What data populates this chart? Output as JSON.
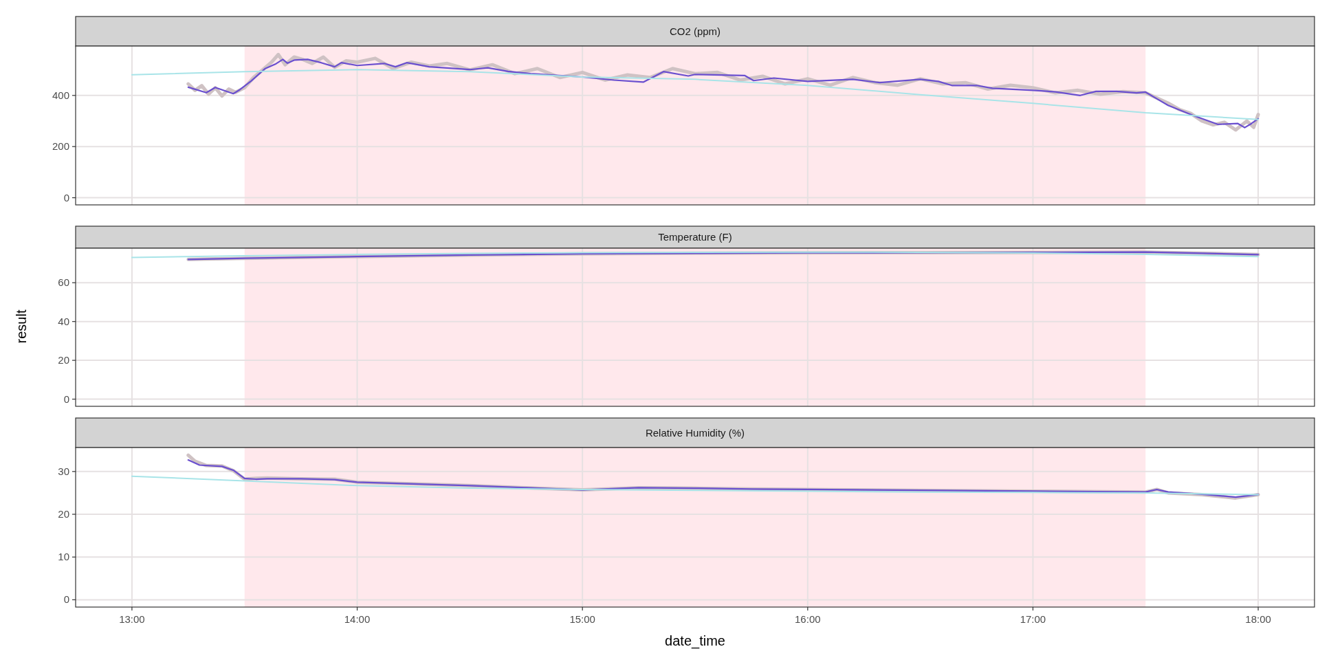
{
  "chart_data": [
    {
      "type": "line",
      "title": "CO2 (ppm)",
      "xlim": [
        12.75,
        18.25
      ],
      "xticks": [
        13,
        14,
        15,
        16,
        17,
        18
      ],
      "ylim": [
        -28,
        593
      ],
      "yticks": [
        0,
        200,
        400
      ],
      "grid": true,
      "tick_labels": "y",
      "bands": [
        {
          "axis": "x",
          "from": 13.5,
          "to": 17.5,
          "color": "#ffe8ec"
        }
      ],
      "series": [
        {
          "color": "#cfc2c4",
          "x": [
            13.25,
            13.28,
            13.31,
            13.34,
            13.37,
            13.4,
            13.43,
            13.46,
            13.5,
            13.54,
            13.58,
            13.62,
            13.65,
            13.68,
            13.72,
            13.76,
            13.8,
            13.85,
            13.9,
            13.95,
            14.0,
            14.08,
            14.16,
            14.24,
            14.32,
            14.4,
            14.5,
            14.6,
            14.7,
            14.8,
            14.9,
            15.0,
            15.1,
            15.2,
            15.3,
            15.4,
            15.5,
            15.6,
            15.7,
            15.8,
            15.9,
            16.0,
            16.1,
            16.2,
            16.3,
            16.4,
            16.5,
            16.6,
            16.7,
            16.8,
            16.9,
            17.0,
            17.1,
            17.2,
            17.3,
            17.4,
            17.5,
            17.55,
            17.6,
            17.65,
            17.7,
            17.75,
            17.8,
            17.85,
            17.9,
            17.95,
            17.98,
            18.0
          ],
          "values": [
            445,
            420,
            438,
            405,
            430,
            398,
            425,
            412,
            430,
            470,
            500,
            530,
            560,
            520,
            550,
            540,
            525,
            550,
            510,
            535,
            530,
            545,
            505,
            530,
            515,
            525,
            500,
            520,
            485,
            505,
            470,
            490,
            460,
            480,
            470,
            505,
            485,
            490,
            460,
            475,
            445,
            465,
            440,
            470,
            450,
            440,
            465,
            445,
            450,
            425,
            440,
            430,
            410,
            420,
            405,
            415,
            410,
            390,
            370,
            345,
            330,
            300,
            285,
            295,
            265,
            300,
            275,
            325
          ]
        },
        {
          "color": "#6a4fcf",
          "x": [
            13.25,
            13.33,
            13.37,
            13.45,
            13.48,
            13.53,
            13.59,
            13.64,
            13.67,
            13.69,
            13.72,
            13.78,
            13.84,
            13.9,
            13.93,
            14.0,
            14.12,
            14.17,
            14.22,
            14.32,
            14.5,
            14.58,
            14.67,
            14.77,
            15.0,
            15.14,
            15.27,
            15.36,
            15.47,
            15.5,
            15.72,
            15.76,
            15.85,
            16.0,
            16.2,
            16.32,
            16.5,
            16.58,
            16.64,
            16.75,
            16.82,
            17.0,
            17.1,
            17.21,
            17.28,
            17.37,
            17.46,
            17.5,
            17.55,
            17.6,
            17.71,
            17.82,
            17.91,
            17.94,
            17.97,
            18.0
          ],
          "values": [
            432,
            411,
            431,
            407,
            423,
            457,
            504,
            524,
            541,
            526,
            538,
            541,
            528,
            512,
            528,
            517,
            525,
            512,
            528,
            512,
            501,
            508,
            494,
            485,
            472,
            460,
            452,
            493,
            476,
            482,
            478,
            458,
            468,
            455,
            463,
            450,
            463,
            455,
            439,
            439,
            428,
            420,
            414,
            400,
            416,
            416,
            410,
            413,
            387,
            361,
            322,
            287,
            290,
            274,
            290,
            309
          ]
        },
        {
          "color": "#a8e4e8",
          "x": [
            13.0,
            13.5,
            14.0,
            14.5,
            15.0,
            15.5,
            16.0,
            16.5,
            17.0,
            17.5,
            18.0
          ],
          "values": [
            481,
            493,
            501,
            493,
            472,
            463,
            439,
            403,
            369,
            332,
            306
          ]
        }
      ]
    },
    {
      "type": "line",
      "title": "Temperature (F)",
      "ylabel": "result",
      "xlim": [
        12.75,
        18.25
      ],
      "xticks": [
        13,
        14,
        15,
        16,
        17,
        18
      ],
      "ylim": [
        -3.7,
        77.8
      ],
      "yticks": [
        0,
        20,
        40,
        60
      ],
      "grid": true,
      "tick_labels": "y",
      "bands": [
        {
          "axis": "x",
          "from": 13.5,
          "to": 17.5,
          "color": "#ffe8ec"
        }
      ],
      "series": [
        {
          "color": "#cfc2c4",
          "x": [
            13.25,
            13.5,
            14.0,
            14.5,
            15.0,
            15.5,
            16.0,
            16.5,
            17.0,
            17.5,
            17.75,
            18.0
          ],
          "values": [
            72,
            72.6,
            73.5,
            74.3,
            74.9,
            75.2,
            75.4,
            75.5,
            75.6,
            75.8,
            75.2,
            74.5
          ]
        },
        {
          "color": "#6a4fcf",
          "x": [
            13.25,
            13.5,
            14.0,
            14.5,
            15.0,
            15.5,
            16.0,
            16.5,
            17.0,
            17.5,
            17.75,
            18.0
          ],
          "values": [
            72,
            72.6,
            73.5,
            74.3,
            74.9,
            75.2,
            75.4,
            75.5,
            75.6,
            75.8,
            75.2,
            74.5
          ]
        },
        {
          "color": "#a8e4e8",
          "x": [
            13.0,
            13.5,
            14.0,
            14.5,
            15.0,
            15.5,
            16.0,
            16.5,
            17.0,
            17.5,
            18.0
          ],
          "values": [
            73,
            73.9,
            74.6,
            75.1,
            75.5,
            75.7,
            75.8,
            75.7,
            75.3,
            74.6,
            73.5
          ]
        }
      ]
    },
    {
      "type": "line",
      "title": "Relative Humidity (%)",
      "xlabel": "date_time",
      "xlim": [
        12.75,
        18.25
      ],
      "xticks": [
        {
          "value": 13,
          "label": "13:00"
        },
        {
          "value": 14,
          "label": "14:00"
        },
        {
          "value": 15,
          "label": "15:00"
        },
        {
          "value": 16,
          "label": "16:00"
        },
        {
          "value": 17,
          "label": "17:00"
        },
        {
          "value": 18,
          "label": "18:00"
        }
      ],
      "ylim": [
        -1.7,
        35.6
      ],
      "yticks": [
        0,
        10,
        20,
        30
      ],
      "grid": true,
      "bands": [
        {
          "axis": "x",
          "from": 13.5,
          "to": 17.5,
          "color": "#ffe8ec"
        }
      ],
      "series": [
        {
          "color": "#cfc2c4",
          "x": [
            13.25,
            13.28,
            13.33,
            13.4,
            13.45,
            13.5,
            13.55,
            13.6,
            13.75,
            13.9,
            14.0,
            14.25,
            14.5,
            14.75,
            15.0,
            15.25,
            15.5,
            15.75,
            16.0,
            16.5,
            17.0,
            17.5,
            17.55,
            17.6,
            17.75,
            17.9,
            18.0
          ],
          "values": [
            33.8,
            32.4,
            31.4,
            31.3,
            30.2,
            28.2,
            28.4,
            28.5,
            28.3,
            28.2,
            27.5,
            27.1,
            26.7,
            26.2,
            25.7,
            26.2,
            26.1,
            25.9,
            25.8,
            25.6,
            25.4,
            25.2,
            25.8,
            25.0,
            24.6,
            23.8,
            24.6
          ]
        },
        {
          "color": "#6a4fcf",
          "x": [
            13.25,
            13.3,
            13.4,
            13.45,
            13.5,
            13.55,
            13.6,
            13.75,
            13.9,
            14.0,
            14.25,
            14.5,
            14.75,
            15.0,
            15.25,
            15.5,
            15.75,
            16.0,
            16.5,
            17.0,
            17.5,
            17.55,
            17.6,
            17.75,
            17.9,
            18.0
          ],
          "values": [
            32.7,
            31.5,
            31.2,
            30.3,
            28.4,
            28.2,
            28.3,
            28.3,
            28.1,
            27.5,
            27.1,
            26.7,
            26.2,
            25.7,
            26.2,
            26.1,
            25.9,
            25.8,
            25.6,
            25.4,
            25.2,
            25.8,
            25.2,
            24.7,
            24.0,
            24.6
          ]
        },
        {
          "color": "#a8e4e8",
          "x": [
            13.0,
            13.5,
            14.0,
            14.5,
            15.0,
            15.5,
            16.0,
            16.5,
            17.0,
            17.5,
            18.0
          ],
          "values": [
            28.9,
            27.8,
            26.7,
            26.1,
            25.8,
            25.6,
            25.4,
            25.2,
            25.1,
            25.0,
            24.6
          ]
        }
      ]
    }
  ]
}
